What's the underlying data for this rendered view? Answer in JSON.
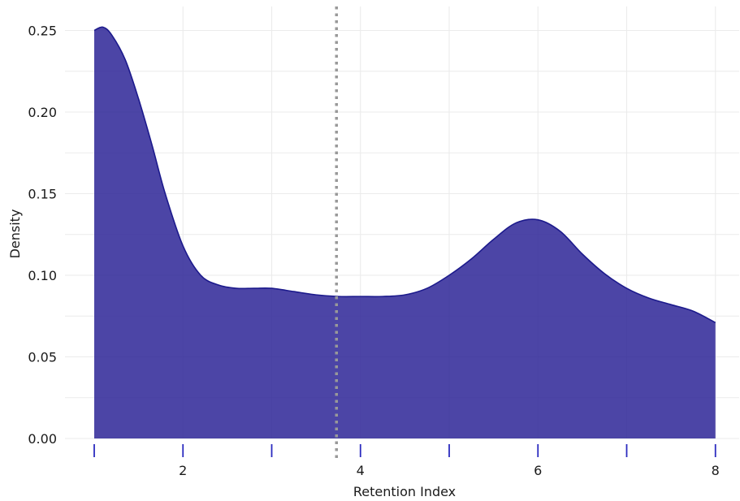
{
  "chart_data": {
    "type": "area",
    "title": "",
    "xlabel": "Retention Index",
    "ylabel": "Density",
    "xlim": [
      1,
      8
    ],
    "ylim": [
      0,
      0.25
    ],
    "x_ticks": [
      2,
      4,
      6,
      8
    ],
    "y_ticks": [
      0.0,
      0.05,
      0.1,
      0.15,
      0.2,
      0.25
    ],
    "y_tick_labels": [
      "0.00",
      "0.05",
      "0.10",
      "0.15",
      "0.20",
      "0.25"
    ],
    "x_tick_labels": [
      "2",
      "4",
      "6",
      "8"
    ],
    "grid": true,
    "reference_line": {
      "x": 3.73,
      "style": "dotted",
      "color": "#999999"
    },
    "rug": [
      1,
      2,
      3,
      4,
      5,
      6,
      7,
      8
    ],
    "series": [
      {
        "x": [
          1.0,
          1.1,
          1.2,
          1.35,
          1.5,
          1.65,
          1.8,
          2.0,
          2.2,
          2.4,
          2.6,
          2.8,
          3.0,
          3.25,
          3.5,
          3.75,
          4.0,
          4.25,
          4.5,
          4.75,
          5.0,
          5.25,
          5.5,
          5.75,
          6.0,
          6.25,
          6.5,
          6.75,
          7.0,
          7.25,
          7.5,
          7.75,
          8.0
        ],
        "values": [
          0.25,
          0.252,
          0.247,
          0.232,
          0.208,
          0.18,
          0.15,
          0.118,
          0.1,
          0.094,
          0.092,
          0.092,
          0.092,
          0.09,
          0.088,
          0.087,
          0.087,
          0.087,
          0.088,
          0.092,
          0.1,
          0.11,
          0.122,
          0.132,
          0.134,
          0.127,
          0.113,
          0.101,
          0.092,
          0.086,
          0.082,
          0.078,
          0.071
        ]
      }
    ],
    "colors": {
      "fill": "#2d2596",
      "stroke": "#1c1a8c",
      "rug": "#2b2bbf",
      "grid": "#ebebeb"
    }
  }
}
